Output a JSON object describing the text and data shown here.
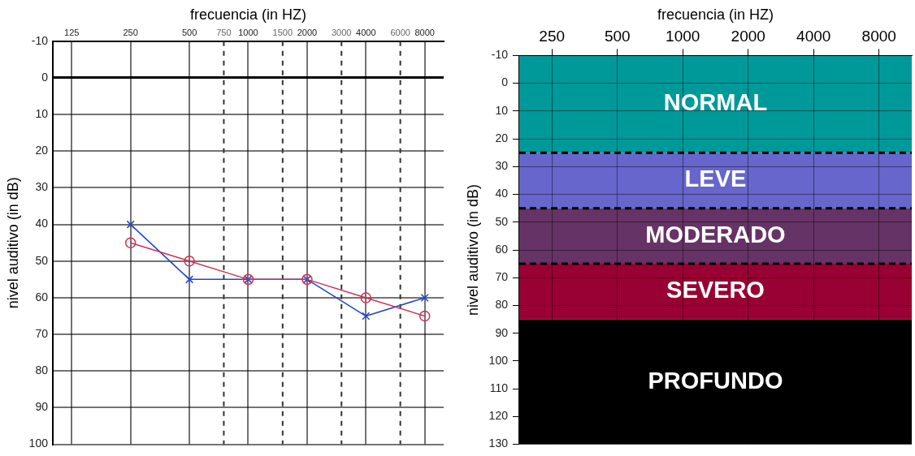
{
  "chart_data": [
    {
      "type": "line",
      "xlabel": "frecuencia (in HZ)",
      "ylabel": "nivel auditivo (in dB)",
      "x": [
        250,
        500,
        1000,
        2000,
        4000,
        8000
      ],
      "log": "x",
      "xlim": [
        100,
        10000
      ],
      "xticks": [
        125,
        250,
        500,
        750,
        1000,
        1500,
        2000,
        3000,
        4000,
        6000,
        8000
      ],
      "ylim": [
        100,
        -10
      ],
      "yticks": [
        -10,
        0,
        10,
        20,
        30,
        40,
        50,
        60,
        70,
        80,
        90,
        100
      ],
      "grid": true,
      "legend": false,
      "series": [
        {
          "color": "#cc3355",
          "marker": "circle",
          "values": [
            45,
            50,
            55,
            55,
            60,
            65
          ]
        },
        {
          "color": "#2244cc",
          "marker": "cross",
          "values": [
            40,
            55,
            55,
            55,
            65,
            60
          ]
        }
      ]
    },
    {
      "type": "line",
      "xlabel": "frecuencia (in HZ)",
      "ylabel": "nivel auditivo (in dB)",
      "categories": [
        "250",
        "500",
        "1000",
        "2000",
        "4000",
        "8000"
      ],
      "ylim": [
        130,
        -10
      ],
      "yticks": [
        -10,
        0,
        10,
        20,
        30,
        40,
        50,
        60,
        70,
        80,
        90,
        100,
        110,
        120,
        130
      ],
      "grid": true,
      "legend": false,
      "bands": [
        {
          "axis": "y",
          "from": -10,
          "to": 25,
          "label": "NORMAL",
          "color": "#009999"
        },
        {
          "axis": "y",
          "from": 25,
          "to": 45,
          "label": "LEVE",
          "color": "#6666cc"
        },
        {
          "axis": "y",
          "from": 45,
          "to": 65,
          "label": "MODERADO",
          "color": "#663366"
        },
        {
          "axis": "y",
          "from": 65,
          "to": 85,
          "label": "SEVERO",
          "color": "#990033"
        },
        {
          "axis": "y",
          "from": 85,
          "to": 130,
          "label": "PROFUNDO",
          "color": "#000000"
        }
      ],
      "ref_lines": [
        {
          "axis": "y",
          "value": 25,
          "color": "#000000",
          "line_style": "dashed"
        },
        {
          "axis": "y",
          "value": 45,
          "color": "#000000",
          "line_style": "dashed"
        },
        {
          "axis": "y",
          "value": 65,
          "color": "#000000",
          "line_style": "dashed"
        }
      ]
    }
  ]
}
